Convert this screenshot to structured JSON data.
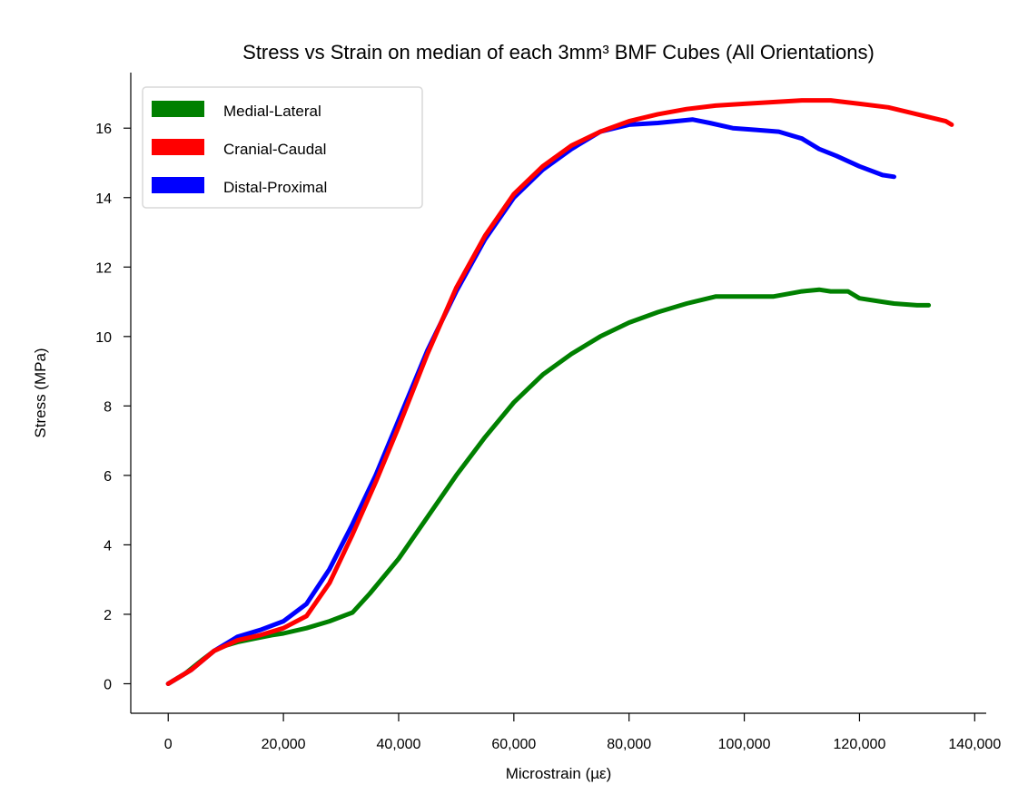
{
  "chart_data": {
    "type": "line",
    "title": "Stress vs Strain on median of each 3mm³ BMF Cubes (All Orientations)",
    "xlabel": "Microstrain (µε)",
    "ylabel": "Stress (MPa)",
    "xlim": [
      -6500,
      142000
    ],
    "ylim": [
      -0.85,
      17.6
    ],
    "xticks": [
      0,
      20000,
      40000,
      60000,
      80000,
      100000,
      120000,
      140000
    ],
    "xtick_labels": [
      "0",
      "20,000",
      "40,000",
      "60,000",
      "80,000",
      "100,000",
      "120,000",
      "140,000"
    ],
    "yticks": [
      0,
      2,
      4,
      6,
      8,
      10,
      12,
      14,
      16
    ],
    "ytick_labels": [
      "0",
      "2",
      "4",
      "6",
      "8",
      "10",
      "12",
      "14",
      "16"
    ],
    "grid": false,
    "legend_position": "top-left",
    "series": [
      {
        "name": "Medial-Lateral",
        "color": "#008000",
        "x": [
          0,
          3000,
          6000,
          8000,
          10000,
          12000,
          15000,
          18000,
          20000,
          24000,
          28000,
          32000,
          35000,
          40000,
          45000,
          50000,
          55000,
          60000,
          65000,
          70000,
          75000,
          80000,
          85000,
          90000,
          95000,
          100000,
          105000,
          110000,
          113000,
          115000,
          118000,
          120000,
          124000,
          126000,
          130000,
          132000
        ],
        "y": [
          0,
          0.3,
          0.7,
          0.95,
          1.1,
          1.2,
          1.3,
          1.4,
          1.45,
          1.6,
          1.8,
          2.05,
          2.6,
          3.6,
          4.8,
          6.0,
          7.1,
          8.1,
          8.9,
          9.5,
          10.0,
          10.4,
          10.7,
          10.95,
          11.15,
          11.15,
          11.15,
          11.3,
          11.35,
          11.3,
          11.3,
          11.1,
          11.0,
          10.95,
          10.9,
          10.9
        ]
      },
      {
        "name": "Cranial-Caudal",
        "color": "#ff0000",
        "x": [
          0,
          4000,
          8000,
          12000,
          16000,
          20000,
          24000,
          28000,
          32000,
          36000,
          40000,
          45000,
          50000,
          55000,
          60000,
          65000,
          70000,
          75000,
          80000,
          85000,
          90000,
          95000,
          100000,
          105000,
          110000,
          115000,
          120000,
          125000,
          130000,
          135000,
          136000
        ],
        "y": [
          0,
          0.4,
          0.95,
          1.25,
          1.4,
          1.6,
          1.95,
          2.9,
          4.3,
          5.8,
          7.4,
          9.5,
          11.4,
          12.9,
          14.1,
          14.9,
          15.5,
          15.9,
          16.2,
          16.4,
          16.55,
          16.65,
          16.7,
          16.75,
          16.8,
          16.8,
          16.7,
          16.6,
          16.4,
          16.2,
          16.1
        ]
      },
      {
        "name": "Distal-Proximal",
        "color": "#0000ff",
        "x": [
          0,
          4000,
          8000,
          12000,
          16000,
          20000,
          24000,
          28000,
          32000,
          36000,
          40000,
          45000,
          50000,
          55000,
          60000,
          65000,
          70000,
          75000,
          80000,
          85000,
          88000,
          91000,
          94000,
          98000,
          102000,
          106000,
          110000,
          113000,
          116000,
          120000,
          124000,
          126000
        ],
        "y": [
          0,
          0.4,
          0.95,
          1.35,
          1.55,
          1.8,
          2.3,
          3.3,
          4.6,
          6.0,
          7.6,
          9.6,
          11.3,
          12.8,
          14.0,
          14.8,
          15.4,
          15.9,
          16.1,
          16.15,
          16.2,
          16.25,
          16.15,
          16.0,
          15.95,
          15.9,
          15.7,
          15.4,
          15.2,
          14.9,
          14.65,
          14.6
        ]
      }
    ]
  }
}
